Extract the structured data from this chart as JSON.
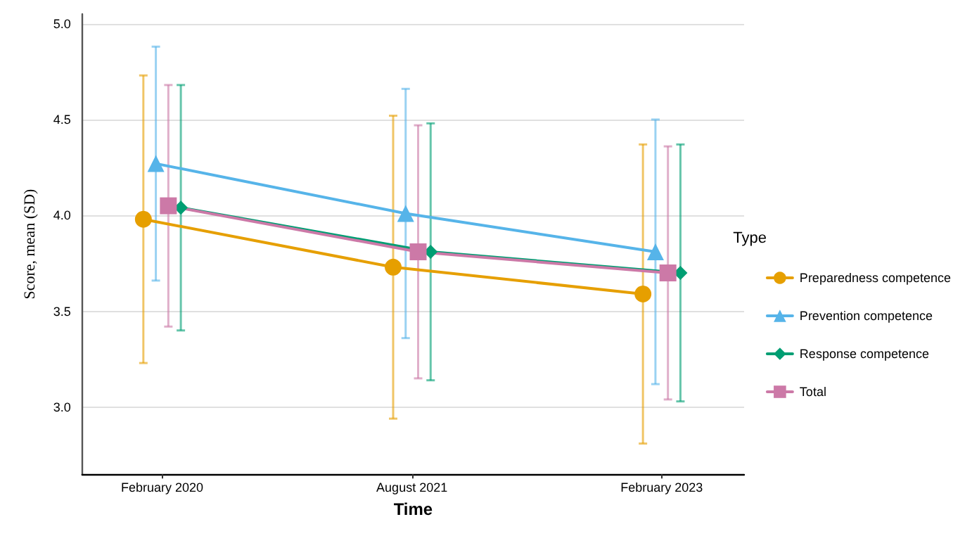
{
  "chart_data": {
    "type": "line",
    "xlabel": "Time",
    "ylabel": "Score, mean (SD)",
    "legend_title": "Type",
    "categories": [
      "February 2020",
      "August 2021",
      "February 2023"
    ],
    "series": [
      {
        "name": "Preparedness competence",
        "color": "#e69f00",
        "marker": "circle",
        "values": [
          3.98,
          3.73,
          3.59
        ],
        "errors": [
          0.75,
          0.79,
          0.78
        ]
      },
      {
        "name": "Prevention competence",
        "color": "#56b4e9",
        "marker": "triangle",
        "values": [
          4.27,
          4.01,
          3.81
        ],
        "errors": [
          0.61,
          0.65,
          0.69
        ]
      },
      {
        "name": "Response competence",
        "color": "#009e73",
        "marker": "diamond",
        "values": [
          4.04,
          3.81,
          3.7
        ],
        "errors": [
          0.64,
          0.67,
          0.67
        ]
      },
      {
        "name": "Total",
        "color": "#cc79a7",
        "marker": "square",
        "values": [
          4.05,
          3.81,
          3.7
        ],
        "errors": [
          0.63,
          0.66,
          0.66
        ]
      }
    ],
    "ylim": [
      2.65,
      5.05
    ],
    "yticks": [
      {
        "value": 3,
        "label": "3.0"
      },
      3.5,
      {
        "value": 4,
        "label": "4.0"
      },
      4.5,
      {
        "value": 5,
        "label": "5.0"
      }
    ],
    "grid": "y",
    "legend": "right",
    "line_style": "solid"
  }
}
